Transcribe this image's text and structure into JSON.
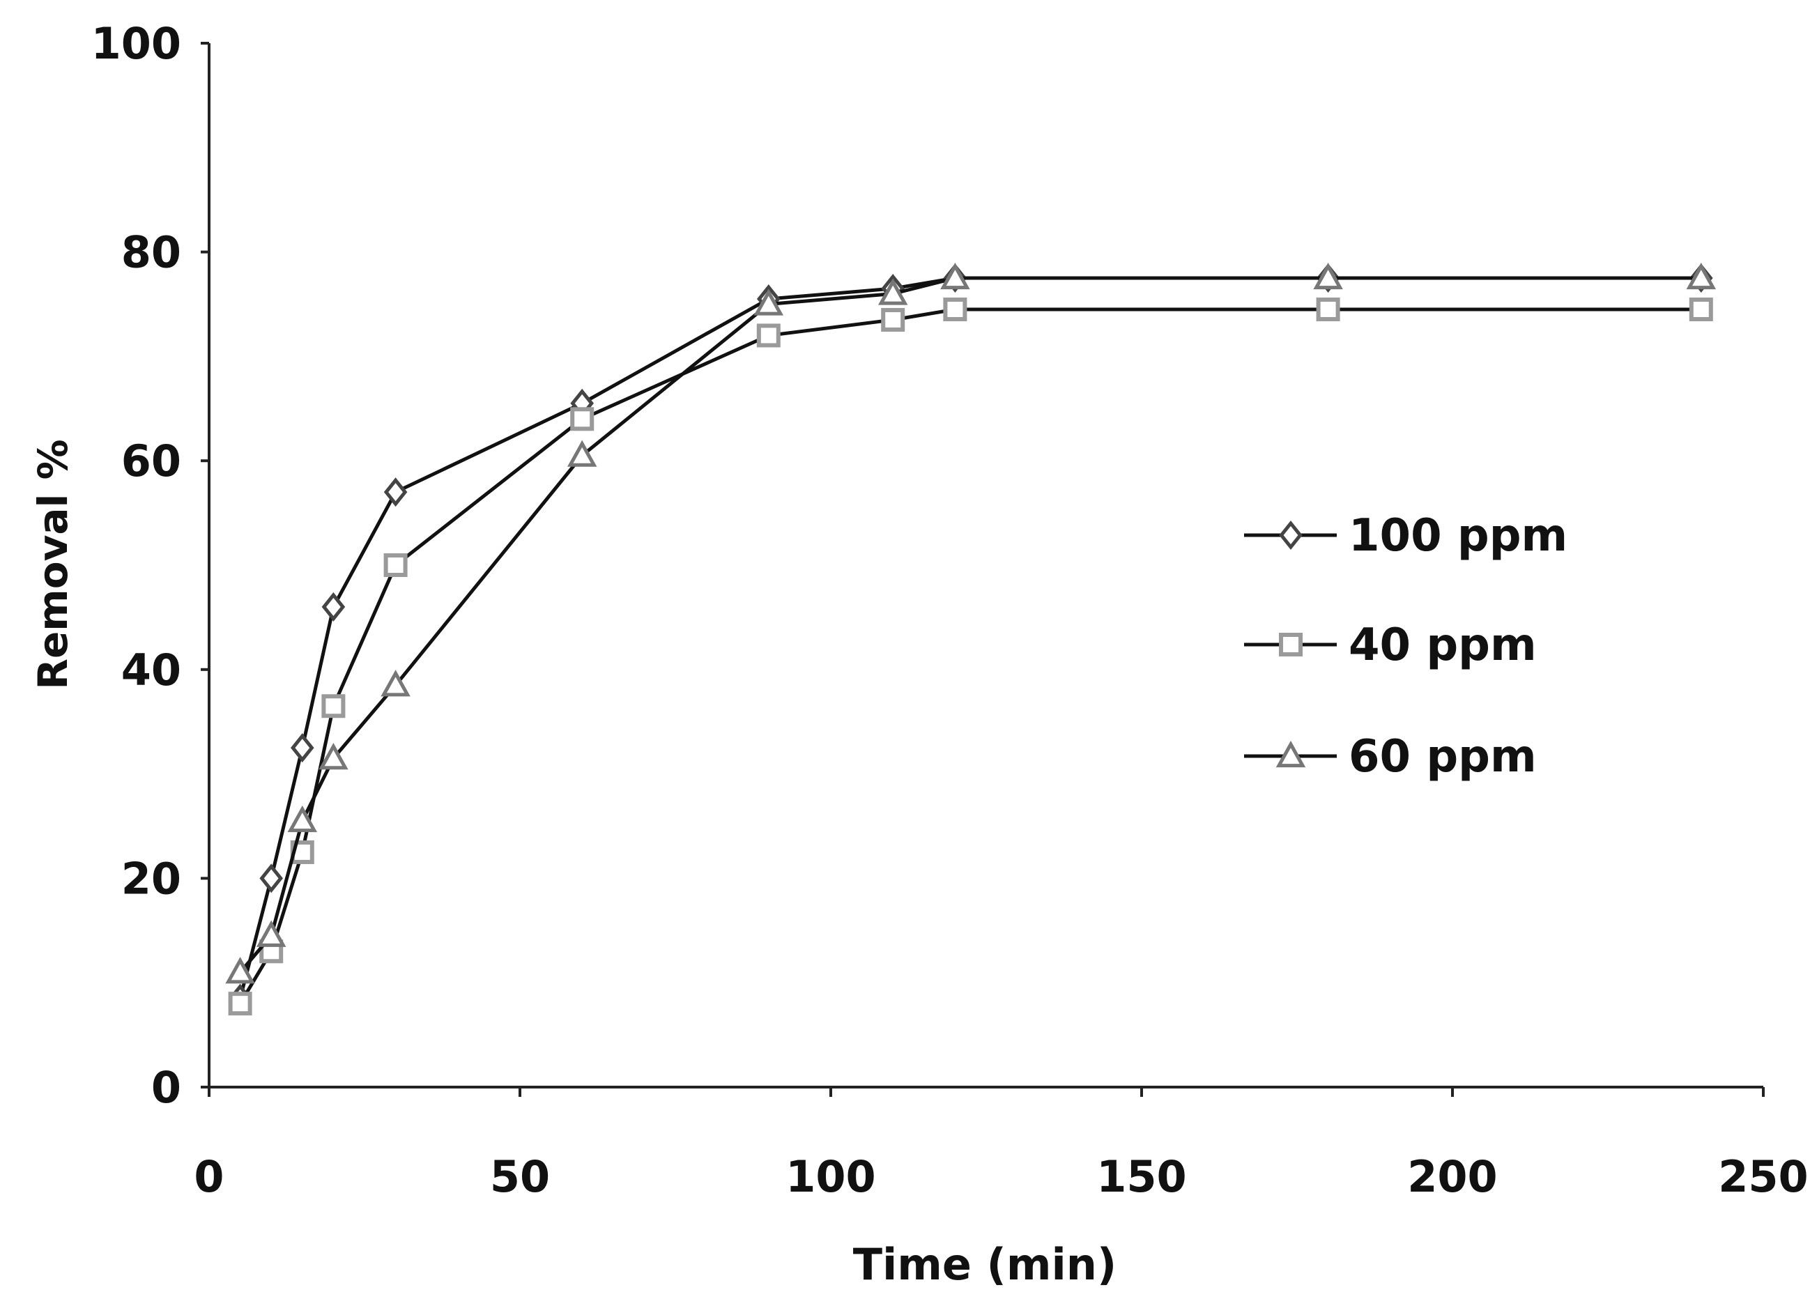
{
  "chart_data": {
    "type": "line",
    "title": "",
    "xlabel": "Time (min)",
    "ylabel": "Removal %",
    "xlim": [
      0,
      250
    ],
    "ylim": [
      0,
      100
    ],
    "x_ticks": [
      0,
      50,
      100,
      150,
      200,
      250
    ],
    "y_ticks": [
      0,
      20,
      40,
      60,
      80,
      100
    ],
    "grid": false,
    "legend_position": "right-middle",
    "series": [
      {
        "name": "100 ppm",
        "marker": "diamond",
        "x": [
          5,
          10,
          15,
          20,
          30,
          60,
          90,
          110,
          120,
          180,
          240
        ],
        "y": [
          8.5,
          20,
          32.5,
          46,
          57,
          65.5,
          75.5,
          76.5,
          77.5,
          77.5,
          77.5
        ]
      },
      {
        "name": "40 ppm",
        "marker": "square",
        "x": [
          5,
          10,
          15,
          20,
          30,
          60,
          90,
          110,
          120,
          180,
          240
        ],
        "y": [
          8,
          13,
          22.5,
          36.5,
          50,
          64,
          72,
          73.5,
          74.5,
          74.5,
          74.5
        ]
      },
      {
        "name": "60 ppm",
        "marker": "triangle",
        "x": [
          5,
          10,
          15,
          20,
          30,
          60,
          90,
          110,
          120,
          180,
          240
        ],
        "y": [
          11,
          14.5,
          25.5,
          31.5,
          38.5,
          60.5,
          75,
          76,
          77.5,
          77.5,
          77.5
        ]
      }
    ]
  }
}
